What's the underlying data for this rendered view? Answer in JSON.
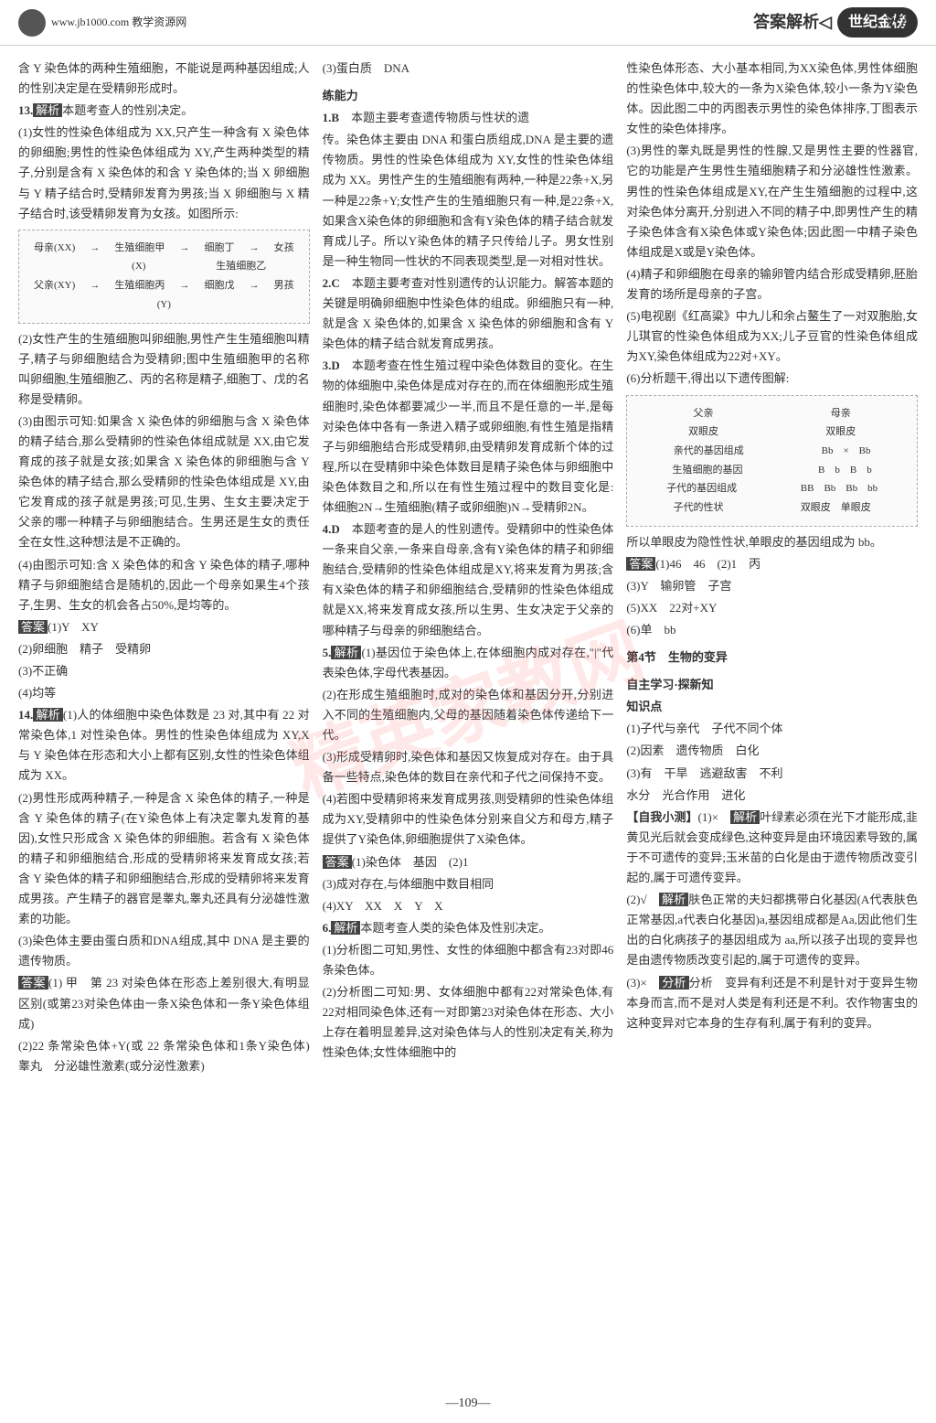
{
  "header": {
    "site_url": "www.jb1000.com",
    "site_name": "教学资源网",
    "title_left": "答案解析",
    "title_right": "世纪金榜"
  },
  "watermark": "精英家教网",
  "page_number": "109",
  "column1": {
    "intro": "含 Y 染色体的两种生殖细胞，不能说是两种基因组成;人的性别决定是在受精卵形成时。",
    "q13_label": "13.",
    "q13_title": "本题考查人的性别决定。",
    "q13_1": "(1)女性的性染色体组成为 XX,只产生一种含有 X 染色体的卵细胞;男性的性染色体组成为 XY,产生两种类型的精子,分别是含有 X 染色体的和含 Y 染色体的;当 X 卵细胞与 Y 精子结合时,受精卵发育为男孩;当 X 卵细胞与 X 精子结合时,该受精卵发育为女孩。如图所示:",
    "diagram1": {
      "mother": "母亲(XX)",
      "father": "父亲(XY)",
      "cell_a": "生殖细胞甲",
      "cell_b": "生殖细胞乙",
      "cell_c": "生殖细胞丙",
      "x": "(X)",
      "y": "(Y)",
      "cell_d": "细胞丁",
      "cell_e": "细胞戊",
      "girl": "女孩",
      "boy": "男孩"
    },
    "q13_2": "(2)女性产生的生殖细胞叫卵细胞,男性产生生殖细胞叫精子,精子与卵细胞结合为受精卵;图中生殖细胞甲的名称叫卵细胞,生殖细胞乙、丙的名称是精子,细胞丁、戊的名称是受精卵。",
    "q13_3": "(3)由图示可知:如果含 X 染色体的卵细胞与含 X 染色体的精子结合,那么受精卵的性染色体组成就是 XX,由它发育成的孩子就是女孩;如果含 X 染色体的卵细胞与含 Y 染色体的精子结合,那么受精卵的性染色体组成是 XY,由它发育成的孩子就是男孩;可见,生男、生女主要决定于父亲的哪一种精子与卵细胞结合。生男还是生女的责任全在女性,这种想法是不正确的。",
    "q13_4": "(4)由图示可知:含 X 染色体的和含 Y 染色体的精子,哪种精子与卵细胞结合是随机的,因此一个母亲如果生4个孩子,生男、生女的机会各占50%,是均等的。",
    "ans13_label": "答案",
    "ans13_1": "(1)Y　XY",
    "ans13_2": "(2)卵细胞　精子　受精卵",
    "ans13_3": "(3)不正确",
    "ans13_4": "(4)均等",
    "q14_label": "14.",
    "q14_title": "(1)人的体细胞中染色体数是 23 对,其中有 22 对常染色体,1 对性染色体。男性的性染色体组成为 XY,X 与 Y 染色体在形态和大小上都有区别,女性的性染色体组成为 XX。",
    "q14_2": "(2)男性形成两种精子,一种是含 X 染色体的精子,一种是含 Y 染色体的精子(在Y染色体上有决定睾丸发育的基因),女性只形成含 X 染色体的卵细胞。若含有 X 染色体的精子和卵细胞结合,形成的受精卵将来发育成女孩;若含 Y 染色体的精子和卵细胞结合,形成的受精卵将来发育成男孩。产生精子的器官是睾丸,睾丸还具有分泌雄性激素的功能。",
    "q14_3": "(3)染色体主要由蛋白质和DNA组成,其中 DNA 是主要的遗传物质。",
    "ans14_label": "答案",
    "ans14_1": "(1) 甲　第 23 对染色体在形态上差别很大,有明显区别(或第23对染色体由一条X染色体和一条Y染色体组成)",
    "ans14_2": "(2)22 条常染色体+Y(或 22 条常染色体和1条Y染色体)　睾丸　分泌雄性激素(或分泌性激素)",
    "ans14_3": "(3)蛋白质　DNA",
    "practice_label": "练能力",
    "p1_label": "1.B",
    "p1_text": "本题主要考查遗传物质与性状的遗"
  },
  "column2": {
    "intro": "传。染色体主要由 DNA 和蛋白质组成,DNA 是主要的遗传物质。男性的性染色体组成为 XY,女性的性染色体组成为 XX。男性产生的生殖细胞有两种,一种是22条+X,另一种是22条+Y;女性产生的生殖细胞只有一种,是22条+X,如果含X染色体的卵细胞和含有Y染色体的精子结合就发育成儿子。所以Y染色体的精子只传给儿子。男女性别是一种生物同一性状的不同表现类型,是一对相对性状。",
    "p2_label": "2.C",
    "p2_text": "本题主要考查对性别遗传的认识能力。解答本题的关键是明确卵细胞中性染色体的组成。卵细胞只有一种,就是含 X 染色体的,如果含 X 染色体的卵细胞和含有 Y 染色体的精子结合就发育成男孩。",
    "p3_label": "3.D",
    "p3_text": "本题考查在性生殖过程中染色体数目的变化。在生物的体细胞中,染色体是成对存在的,而在体细胞形成生殖细胞时,染色体都要减少一半,而且不是任意的一半,是每对染色体中各有一条进入精子或卵细胞,有性生殖是指精子与卵细胞结合形成受精卵,由受精卵发育成新个体的过程,所以在受精卵中染色体数目是精子染色体与卵细胞中染色体数目之和,所以在有性生殖过程中的数目变化是:体细胞2N→生殖细胞(精子或卵细胞)N→受精卵2N。",
    "p4_label": "4.D",
    "p4_text": "本题考查的是人的性别遗传。受精卵中的性染色体一条来自父亲,一条来自母亲,含有Y染色体的精子和卵细胞结合,受精卵的性染色体组成是XY,将来发育为男孩;含有X染色体的精子和卵细胞结合,受精卵的性染色体组成就是XX,将来发育成女孩,所以生男、生女决定于父亲的哪种精子与母亲的卵细胞结合。",
    "p5_label": "5.",
    "p5_1": "(1)基因位于染色体上,在体细胞内成对存在,\"|\"代表染色体,字母代表基因。",
    "p5_2": "(2)在形成生殖细胞时,成对的染色体和基因分开,分别进入不同的生殖细胞内,父母的基因随着染色体传递给下一代。",
    "p5_3": "(3)形成受精卵时,染色体和基因又恢复成对存在。由于具备一些特点,染色体的数目在亲代和子代之间保持不变。",
    "p5_4": "(4)若图中受精卵将来发育成男孩,则受精卵的性染色体组成为XY,受精卵中的性染色体分别来自父方和母方,精子提供了Y染色体,卵细胞提供了X染色体。",
    "ans5_label": "答案",
    "ans5_1": "(1)染色体　基因　(2)1",
    "ans5_2": "(3)成对存在,与体细胞中数目相同",
    "ans5_3": "(4)XY　XX　X　Y　X",
    "p6_label": "6.",
    "p6_title": "本题考查人类的染色体及性别决定。",
    "p6_1": "(1)分析图二可知,男性、女性的体细胞中都含有23对即46条染色体。",
    "p6_2": "(2)分析图二可知:男、女体细胞中都有22对常染色体,有22对相同染色体,还有一对即第23对染色体在形态、大小上存在着明显差异,这对染色体与人的性别决定有关,称为性染色体;女性体细胞中的"
  },
  "column3": {
    "intro": "性染色体形态、大小基本相同,为XX染色体,男性体细胞的性染色体中,较大的一条为X染色体,较小一条为Y染色体。因此图二中的丙图表示男性的染色体排序,丁图表示女性的染色体排序。",
    "p6_3": "(3)男性的睾丸既是男性的性腺,又是男性主要的性器官,它的功能是产生男性生殖细胞精子和分泌雄性性激素。男性的性染色体组成是XY,在产生生殖细胞的过程中,这对染色体分离开,分别进入不同的精子中,即男性产生的精子染色体含有X染色体或Y染色体;因此图一中精子染色体组成是X或是Y染色体。",
    "p6_4": "(4)精子和卵细胞在母亲的输卵管内结合形成受精卵,胚胎发育的场所是母亲的子宫。",
    "p6_5": "(5)电视剧《红高粱》中九儿和余占鳌生了一对双胞胎,女儿琪官的性染色体组成为XX;儿子豆官的性染色体组成为XY,染色体组成为22对+XY。",
    "p6_6": "(6)分析题干,得出以下遗传图解:",
    "diagram2": {
      "father": "父亲",
      "mother": "母亲",
      "father_trait": "双眼皮",
      "mother_trait": "双眼皮",
      "parent_label": "亲代的基因组成",
      "bb_x": "Bb　×　Bb",
      "cell_label": "生殖细胞的基因",
      "cells": "B　b　B　b",
      "child_label": "子代的基因组成",
      "children": "BB　Bb　Bb　bb",
      "trait_label": "子代的性状",
      "traits": "双眼皮　单眼皮"
    },
    "conclusion": "所以单眼皮为隐性性状,单眼皮的基因组成为 bb。",
    "ans6_label": "答案",
    "ans6_1": "(1)46　46　(2)1　丙",
    "ans6_2": "(3)Y　输卵管　子宫",
    "ans6_3": "(5)XX　22对+XY",
    "ans6_4": "(6)单　bb",
    "section4_label": "第4节",
    "section4_title": "生物的变异",
    "subtitle": "自主学习·探新知",
    "zhishi_label": "知识点",
    "zhishi_1": "(1)子代与亲代　子代不同个体",
    "zhishi_2": "(2)因素　遗传物质　白化",
    "zhishi_3": "(3)有　干旱　逃避敌害　不利",
    "zhishi_4": "水分　光合作用　进化",
    "ziwo_label": "【自我小测】",
    "ziwo_1_label": "(1)×",
    "ziwo_1": "叶绿素必须在光下才能形成,韭黄见光后就会变成绿色,这种变异是由环境因素导致的,属于不可遗传的变异;玉米苗的白化是由于遗传物质改变引起的,属于可遗传变异。",
    "ziwo_2_label": "(2)√",
    "ziwo_2": "肤色正常的夫妇都携带白化基因(A代表肤色正常基因,a代表白化基因)a,基因组成都是Aa,因此他们生出的白化病孩子的基因组成为 aa,所以孩子出现的变异也是由遗传物质改变引起的,属于可遗传的变异。",
    "ziwo_3_label": "(3)×",
    "ziwo_3": "分析　变异有利还是不利是针对于变异生物本身而言,而不是对人类是有利还是不利。农作物害虫的这种变异对它本身的生存有利,属于有利的变异。"
  }
}
